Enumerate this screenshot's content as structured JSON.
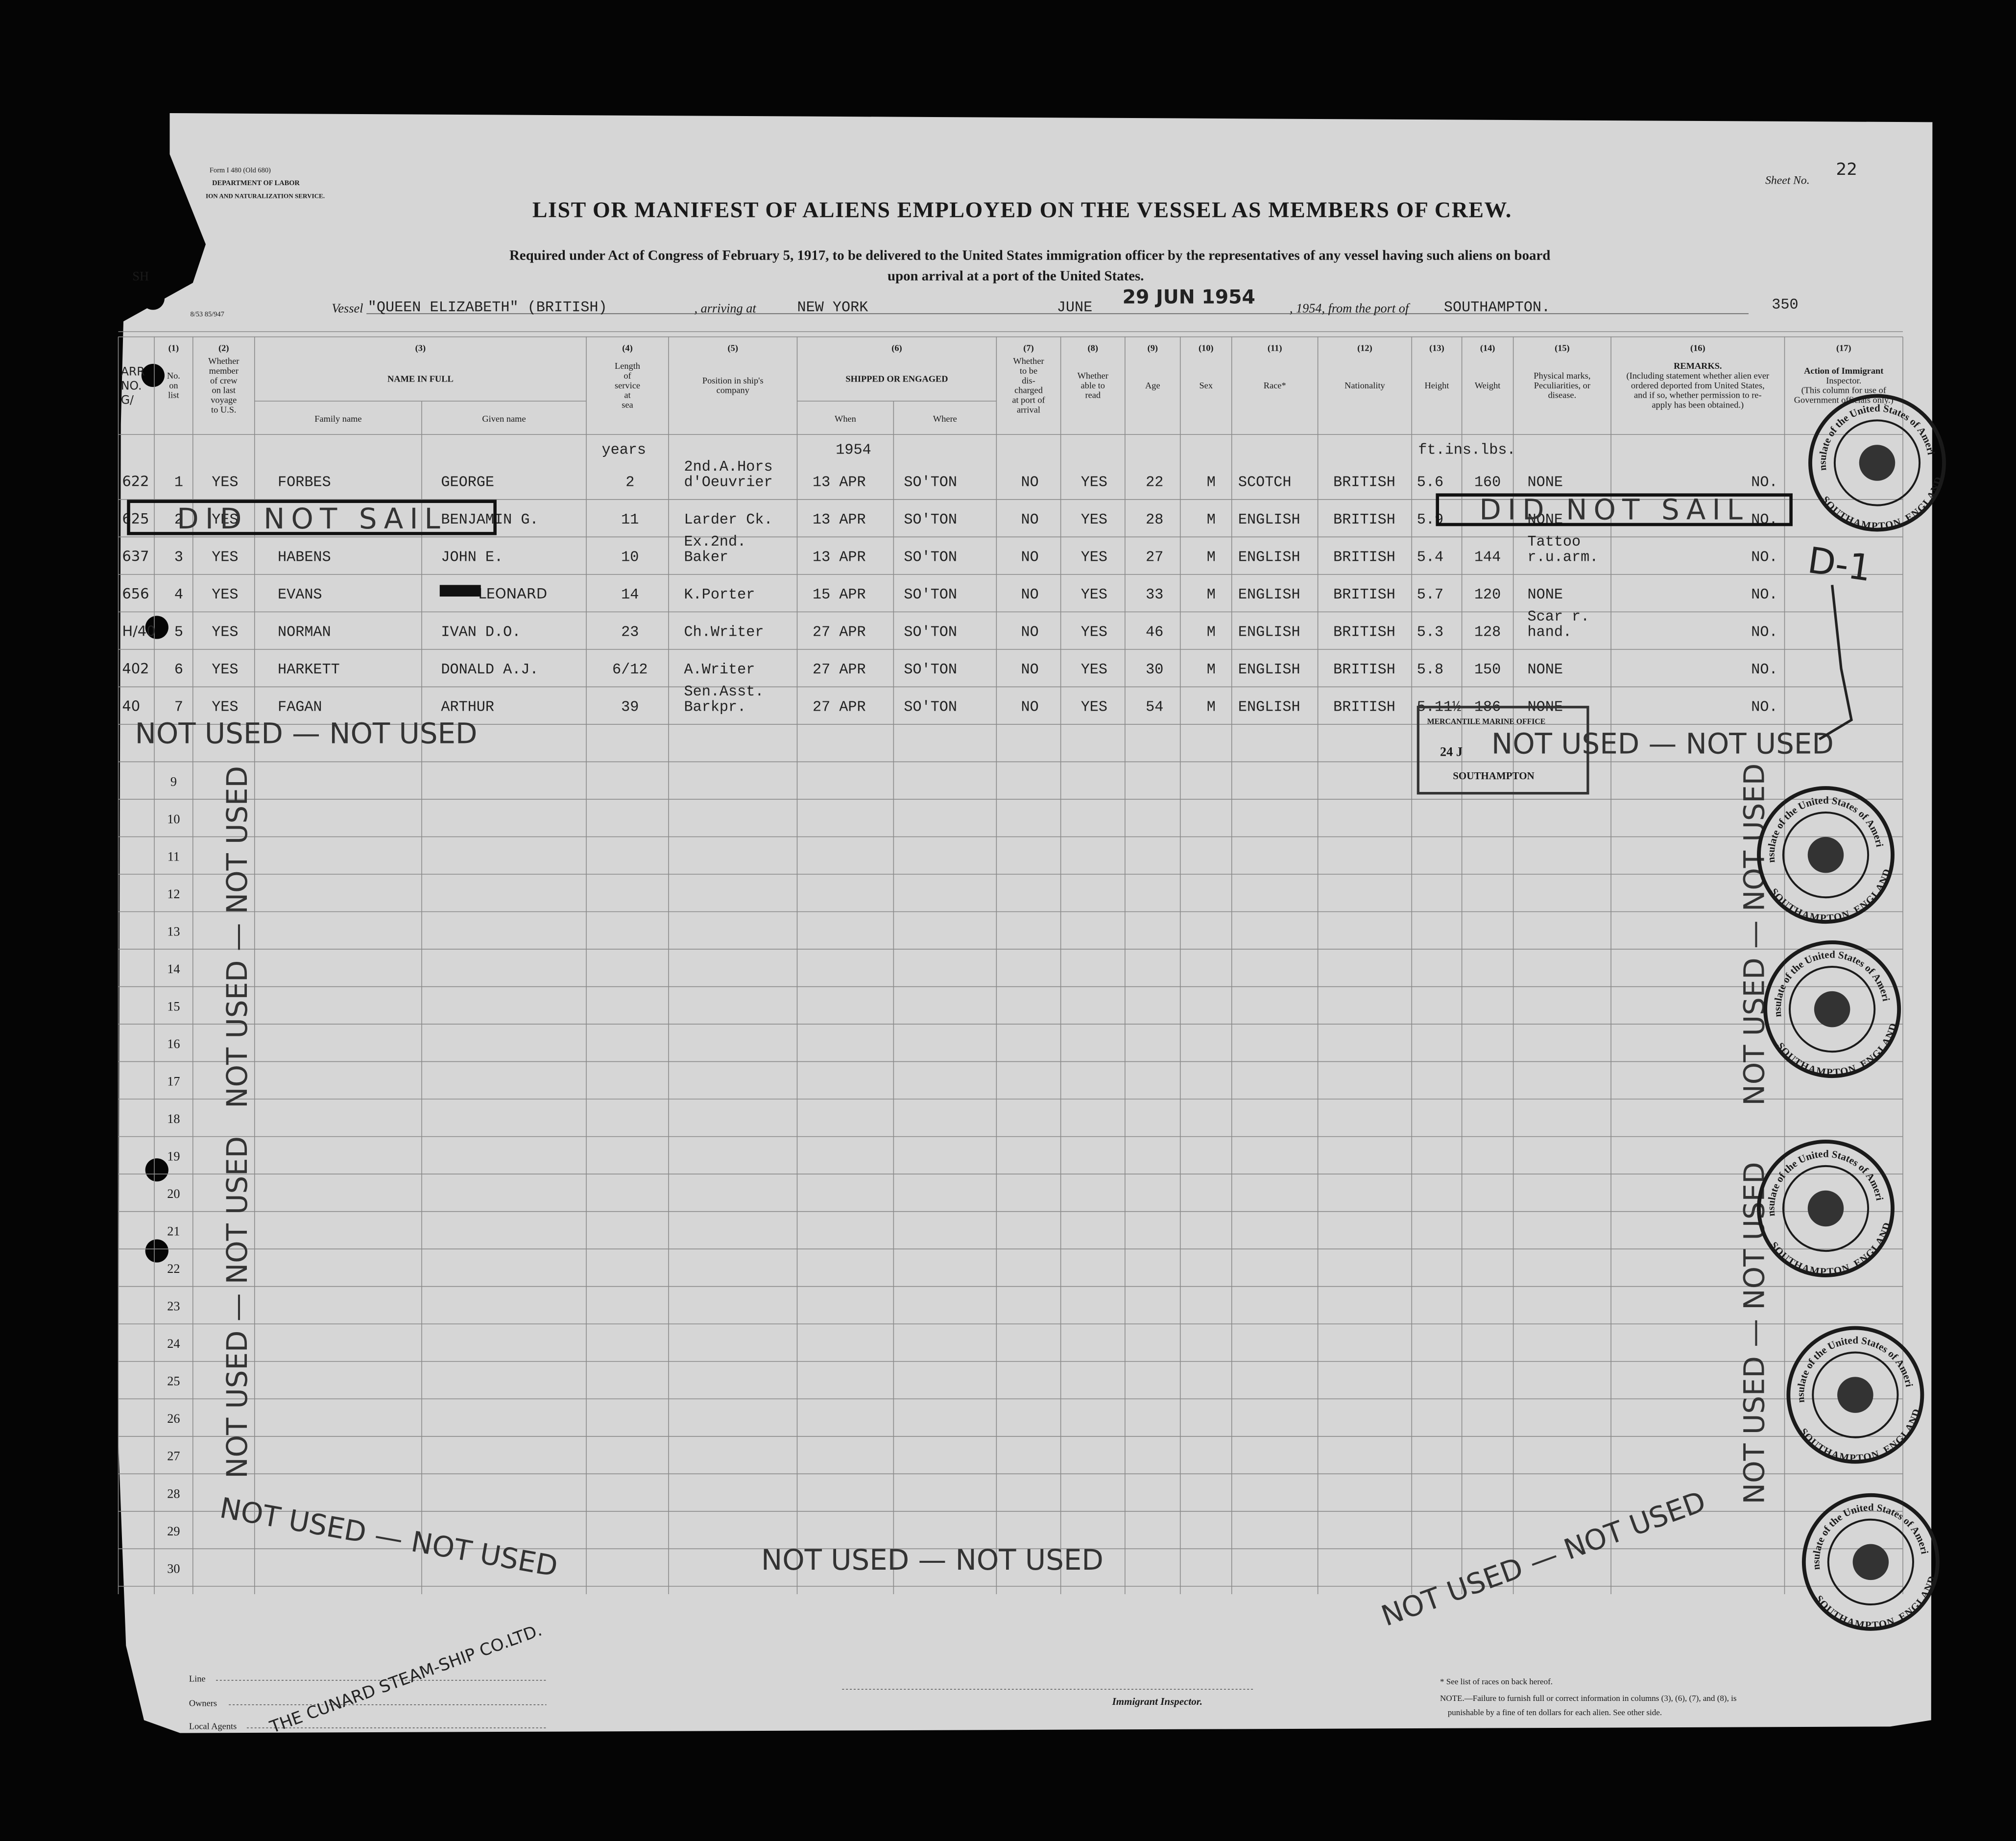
{
  "header": {
    "form": "Form I 480 (Old 680)",
    "department": "DEPARTMENT OF LABOR",
    "service": "ION AND NATURALIZATION SERVICE.",
    "sheet_label": "Sheet No.",
    "sheet_no": "22",
    "title": "LIST OR MANIFEST OF ALIENS EMPLOYED ON THE VESSEL AS MEMBERS OF CREW.",
    "subtitle_1": "Required under Act of Congress of February 5, 1917, to be delivered to the United States immigration officer by the representatives of any vessel having such aliens on board",
    "subtitle_2": "upon arrival at a port of the United States.",
    "code": "SH",
    "print_code": "8/53 85/947"
  },
  "voyage": {
    "vessel_label": "Vessel",
    "vessel": "\"QUEEN ELIZABETH\" (BRITISH)",
    "arriving_label": ", arriving at",
    "port": "NEW YORK",
    "month": "JUNE",
    "stamp_date": "29 JUN 1954",
    "year_label": ", 1954, from the port of",
    "from_port": "SOUTHAMPTON.",
    "number": "350"
  },
  "arr_header": [
    "ARR",
    "NO.",
    "G/"
  ],
  "columns": [
    {
      "num": "(1)",
      "label": [
        "No.",
        "on",
        "list"
      ]
    },
    {
      "num": "(2)",
      "label": [
        "Whether",
        "member",
        "of crew",
        "on last",
        "voyage",
        "to U.S."
      ]
    },
    {
      "num": "(3)",
      "label": [
        "NAME IN FULL"
      ],
      "sub": [
        "Family name",
        "Given name"
      ]
    },
    {
      "num": "(4)",
      "label": [
        "Length",
        "of",
        "service",
        "at",
        "sea"
      ]
    },
    {
      "num": "(5)",
      "label": [
        "Position in ship's",
        "company"
      ]
    },
    {
      "num": "(6)",
      "label": [
        "SHIPPED OR ENGAGED"
      ],
      "sub": [
        "When",
        "Where"
      ]
    },
    {
      "num": "(7)",
      "label": [
        "Whether",
        "to be",
        "dis-",
        "charged",
        "at port of",
        "arrival"
      ]
    },
    {
      "num": "(8)",
      "label": [
        "Whether",
        "able to",
        "read"
      ]
    },
    {
      "num": "(9)",
      "label": [
        "Age"
      ]
    },
    {
      "num": "(10)",
      "label": [
        "Sex"
      ]
    },
    {
      "num": "(11)",
      "label": [
        "Race*"
      ]
    },
    {
      "num": "(12)",
      "label": [
        "Nationality"
      ]
    },
    {
      "num": "(13)",
      "label": [
        "Height"
      ]
    },
    {
      "num": "(14)",
      "label": [
        "Weight"
      ]
    },
    {
      "num": "(15)",
      "label": [
        "Physical marks,",
        "Peculiarities, or",
        "disease."
      ]
    },
    {
      "num": "(16)",
      "label": [
        "REMARKS.",
        "(Including statement whether alien ever",
        "ordered deported from United States,",
        "and if so, whether permission to re-",
        "apply has been obtained.)"
      ]
    },
    {
      "num": "(17)",
      "label": [
        "Action of Immigrant",
        "Inspector.",
        "(This column for use of",
        "Government officials only.)"
      ]
    }
  ],
  "units": {
    "service": "years",
    "when": "1954",
    "height_weight": "ft.ins.lbs."
  },
  "rows": [
    {
      "arr": "622",
      "no": "1",
      "crew": "YES",
      "family": "FORBES",
      "given": "GEORGE",
      "service": "2",
      "position": [
        "2nd.A.Hors",
        "d'Oeuvrier"
      ],
      "when": "13 APR",
      "where": "SO'TON",
      "discharged": "NO",
      "read": "YES",
      "age": "22",
      "sex": "M",
      "race": "SCOTCH",
      "nationality": "BRITISH",
      "height": "5.6",
      "weight": "160",
      "marks": [
        "NONE"
      ],
      "action": "NO."
    },
    {
      "arr": "625",
      "no": "2",
      "crew": "YES",
      "given": "BENJAMIN G.",
      "service": "11",
      "position": [
        "Larder Ck."
      ],
      "when": "13 APR",
      "where": "SO'TON",
      "discharged": "NO",
      "read": "YES",
      "age": "28",
      "sex": "M",
      "race": "ENGLISH",
      "nationality": "BRITISH",
      "height": "5.9",
      "marks": [
        "NONE"
      ],
      "action": "NO."
    },
    {
      "arr": "637",
      "no": "3",
      "crew": "YES",
      "family": "HABENS",
      "given": "JOHN E.",
      "service": "10",
      "position": [
        "Ex.2nd.",
        "Baker"
      ],
      "when": "13 APR",
      "where": "SO'TON",
      "discharged": "NO",
      "read": "YES",
      "age": "27",
      "sex": "M",
      "race": "ENGLISH",
      "nationality": "BRITISH",
      "height": "5.4",
      "weight": "144",
      "marks": [
        "Tattoo",
        "r.u.arm."
      ],
      "action": "NO."
    },
    {
      "arr": "656",
      "no": "4",
      "crew": "YES",
      "family": "EVANS",
      "given": "LEONARD",
      "service": "14",
      "position": [
        "K.Porter"
      ],
      "when": "15 APR",
      "where": "SO'TON",
      "discharged": "NO",
      "read": "YES",
      "age": "33",
      "sex": "M",
      "race": "ENGLISH",
      "nationality": "BRITISH",
      "height": "5.7",
      "weight": "120",
      "marks": [
        "NONE"
      ],
      "action": "NO."
    },
    {
      "arr": "H/40",
      "no": "5",
      "crew": "YES",
      "family": "NORMAN",
      "given": "IVAN D.O.",
      "service": "23",
      "position": [
        "Ch.Writer"
      ],
      "when": "27 APR",
      "where": "SO'TON",
      "discharged": "NO",
      "read": "YES",
      "age": "46",
      "sex": "M",
      "race": "ENGLISH",
      "nationality": "BRITISH",
      "height": "5.3",
      "weight": "128",
      "marks": [
        "Scar r.",
        "hand."
      ],
      "action": "NO."
    },
    {
      "arr": "402",
      "no": "6",
      "crew": "YES",
      "family": "HARKETT",
      "given": "DONALD A.J.",
      "service": "6/12",
      "position": [
        "A.Writer"
      ],
      "when": "27 APR",
      "where": "SO'TON",
      "discharged": "NO",
      "read": "YES",
      "age": "30",
      "sex": "M",
      "race": "ENGLISH",
      "nationality": "BRITISH",
      "height": "5.8",
      "weight": "150",
      "marks": [
        "NONE"
      ],
      "action": "NO."
    },
    {
      "arr": "40",
      "no": "7",
      "crew": "YES",
      "family": "FAGAN",
      "given": "ARTHUR",
      "service": "39",
      "position": [
        "Sen.Asst.",
        "Barkpr."
      ],
      "when": "27 APR",
      "where": "SO'TON",
      "discharged": "NO",
      "read": "YES",
      "age": "54",
      "sex": "M",
      "race": "ENGLISH",
      "nationality": "BRITISH",
      "height": "5.11½",
      "weight": "186",
      "marks": [
        "NONE"
      ],
      "action": "NO."
    }
  ],
  "blank_rows": [
    9,
    10,
    11,
    12,
    13,
    14,
    15,
    16,
    17,
    18,
    19,
    20,
    21,
    22,
    23,
    24,
    25,
    26,
    27,
    28,
    29,
    30
  ],
  "stamps": {
    "did_not_sail": [
      "DID NOT SAIL",
      "DID NOT SAIL"
    ],
    "not_used": [
      "NOT USED — NOT USED",
      "NOT USED — NOT USED",
      "NOT USED — NOT USED",
      "NOT USED — NOT USED",
      "NOT USED — NOT USED",
      "NOT USED — NOT USED",
      "NOT USED — NOT USED",
      "NOT USED — NOT USED",
      "NOT USED — NOT USED"
    ],
    "handwritten": "D-1",
    "office": [
      "MERCANTILE MARINE OFFICE",
      "24 J",
      "SOUTHAMPTON"
    ],
    "seal_top": "Consulate of the United States of America",
    "seal_bottom": "SOUTHAMPTON, ENGLAND",
    "agent": "THE CUNARD STEAM-SHIP CO.LTD."
  },
  "footer": {
    "line_label": "Line",
    "owners_label": "Owners",
    "agents_label": "Local Agents",
    "inspector": "Immigrant Inspector.",
    "races_note": "* See list of races on back hereof.",
    "note_1": "NOTE.—Failure to furnish full or correct information in columns (3), (6), (7), and (8), is",
    "note_2": "punishable by a fine of ten dollars for each alien.  See other side."
  }
}
